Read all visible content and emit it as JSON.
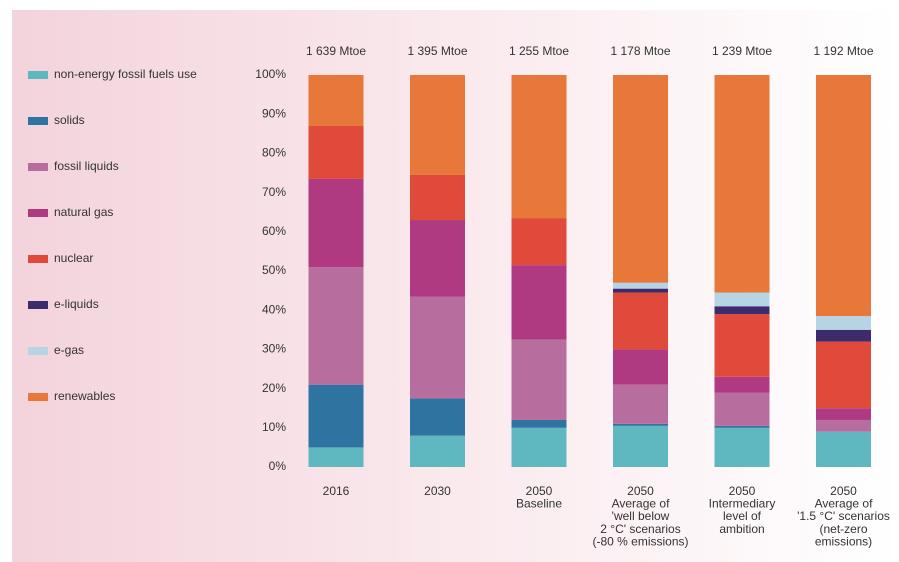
{
  "chart_data": {
    "type": "stacked_bar",
    "categories": [
      "2016",
      "2030",
      "2050\nBaseline",
      "2050\nAverage of\n'well below\n2 °C' scenarios\n(-80 % emissions)",
      "2050\nIntermediary\nlevel of\nambition",
      "2050\nAverage of\n'1.5 °C' scenarios\n(net-zero\nemissions)"
    ],
    "totals": [
      "1 639 Mtoe",
      "1 395 Mtoe",
      "1 255 Mtoe",
      "1 178 Mtoe",
      "1 239 Mtoe",
      "1 192 Mtoe"
    ],
    "series": [
      {
        "name": "non-energy fossil fuels use",
        "color": "#5fb8c0",
        "values": [
          5,
          8,
          10,
          10.5,
          10,
          9
        ]
      },
      {
        "name": "solids",
        "color": "#2f73a0",
        "values": [
          16,
          9.5,
          2,
          0.5,
          0.5,
          0
        ]
      },
      {
        "name": "fossil liquids",
        "color": "#b86d9f",
        "values": [
          30,
          26,
          20.5,
          10,
          8.5,
          3
        ]
      },
      {
        "name": "natural gas",
        "color": "#b03a82",
        "values": [
          22.5,
          19.5,
          19,
          9,
          4,
          3
        ]
      },
      {
        "name": "nuclear",
        "color": "#e04a3a",
        "values": [
          13.5,
          11.5,
          12,
          14.5,
          16,
          17
        ]
      },
      {
        "name": "e-liquids",
        "color": "#3d2c6b",
        "values": [
          0,
          0,
          0,
          1,
          2,
          3
        ]
      },
      {
        "name": "e-gas",
        "color": "#b7d3e6",
        "values": [
          0,
          0,
          0,
          1.5,
          3.5,
          3.5
        ]
      },
      {
        "name": "renewables",
        "color": "#e8773a",
        "values": [
          13,
          25.5,
          36.5,
          53,
          55.5,
          61.5
        ]
      }
    ],
    "ylim": [
      0,
      100
    ],
    "yticks": [
      {
        "value": 0,
        "label": "0%"
      },
      {
        "value": 10,
        "label": "10%"
      },
      {
        "value": 20,
        "label": "20%"
      },
      {
        "value": 30,
        "label": "30%"
      },
      {
        "value": 40,
        "label": "40%"
      },
      {
        "value": 50,
        "label": "50%"
      },
      {
        "value": 60,
        "label": "60%"
      },
      {
        "value": 70,
        "label": "70%"
      },
      {
        "value": 80,
        "label": "80%"
      },
      {
        "value": 90,
        "label": "90%"
      },
      {
        "value": 100,
        "label": "100%"
      }
    ]
  }
}
